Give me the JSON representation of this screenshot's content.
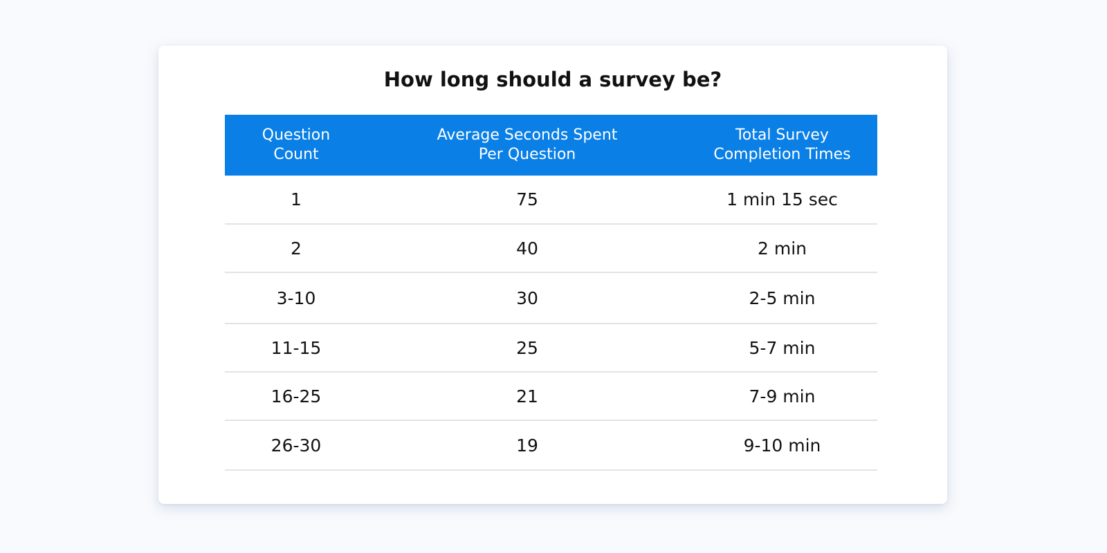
{
  "title": "How long should a survey be?",
  "table": {
    "headers": [
      {
        "line1": "Question",
        "line2": "Count"
      },
      {
        "line1": "Average Seconds Spent",
        "line2": "Per Question"
      },
      {
        "line1": "Total Survey",
        "line2": "Completion Times"
      }
    ],
    "rows": [
      [
        "1",
        "75",
        "1 min 15 sec"
      ],
      [
        "2",
        "40",
        "2 min"
      ],
      [
        "3-10",
        "30",
        "2-5 min"
      ],
      [
        "11-15",
        "25",
        "5-7 min"
      ],
      [
        "16-25",
        "21",
        "7-9 min"
      ],
      [
        "26-30",
        "19",
        "9-10 min"
      ]
    ]
  },
  "colors": {
    "header_bg": "#0a7fe6",
    "page_bg": "#f8fafd",
    "card_bg": "#ffffff",
    "divider": "#e3e3e3"
  }
}
